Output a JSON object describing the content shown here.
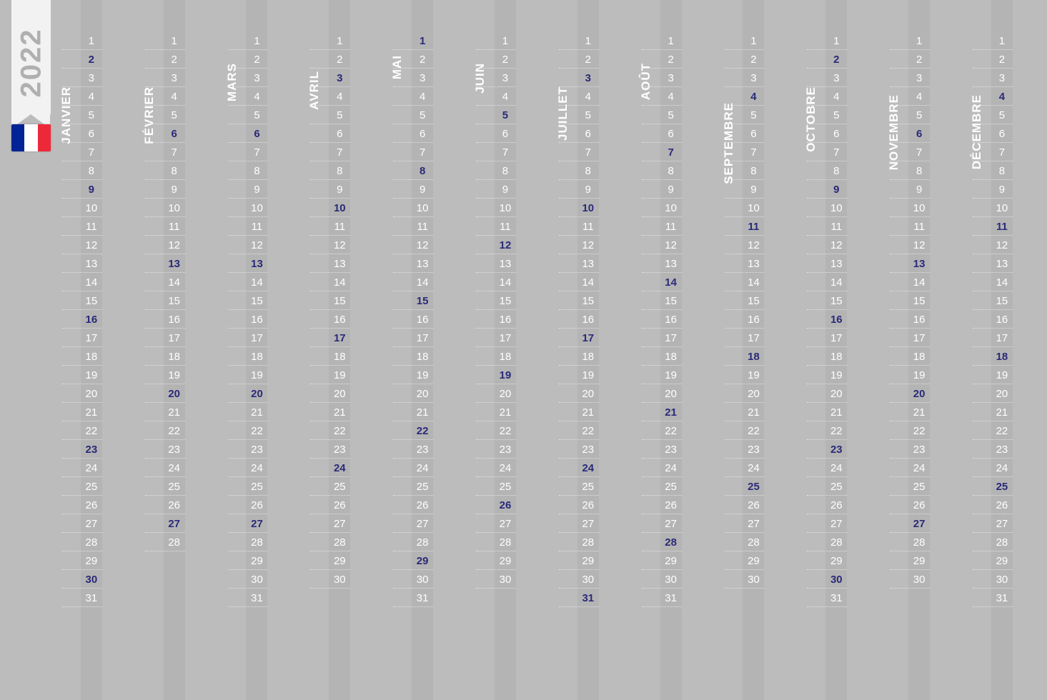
{
  "year": "2022",
  "flag": {
    "stripes": [
      "#002395",
      "#ffffff",
      "#ed2939"
    ]
  },
  "colors": {
    "background": "#bcbcbc",
    "stripe_dark": "rgba(0,0,0,0.04)",
    "normal_day": "#ffffff",
    "highlight_day": "#2a2a7a",
    "month_label": "#ffffff",
    "year_label": "#b0b0b0",
    "ribbon": "#f2f2f2",
    "dotted_divider": "#e8e8e8"
  },
  "typography": {
    "month_fontsize": 17,
    "day_fontsize": 15,
    "year_fontsize": 40
  },
  "months": [
    {
      "name": "JANVIER",
      "days": 31,
      "highlights": [
        2,
        9,
        16,
        23,
        30
      ]
    },
    {
      "name": "FÉVRIER",
      "days": 28,
      "highlights": [
        6,
        13,
        20,
        27
      ]
    },
    {
      "name": "MARS",
      "days": 31,
      "highlights": [
        6,
        13,
        20,
        27
      ]
    },
    {
      "name": "AVRIL",
      "days": 30,
      "highlights": [
        3,
        10,
        17,
        24
      ]
    },
    {
      "name": "MAI",
      "days": 31,
      "highlights": [
        1,
        8,
        15,
        22,
        29
      ]
    },
    {
      "name": "JUIN",
      "days": 30,
      "highlights": [
        5,
        12,
        19,
        26
      ]
    },
    {
      "name": "JUILLET",
      "days": 31,
      "highlights": [
        3,
        10,
        17,
        24,
        31
      ]
    },
    {
      "name": "AOÛT",
      "days": 31,
      "highlights": [
        7,
        14,
        21,
        28
      ]
    },
    {
      "name": "SEPTEMBRE",
      "days": 30,
      "highlights": [
        4,
        11,
        18,
        25
      ]
    },
    {
      "name": "OCTOBRE",
      "days": 31,
      "highlights": [
        2,
        9,
        16,
        23,
        30
      ]
    },
    {
      "name": "NOVEMBRE",
      "days": 30,
      "highlights": [
        6,
        13,
        20,
        27
      ]
    },
    {
      "name": "DÉCEMBRE",
      "days": 31,
      "highlights": [
        4,
        11,
        18,
        25
      ]
    }
  ]
}
